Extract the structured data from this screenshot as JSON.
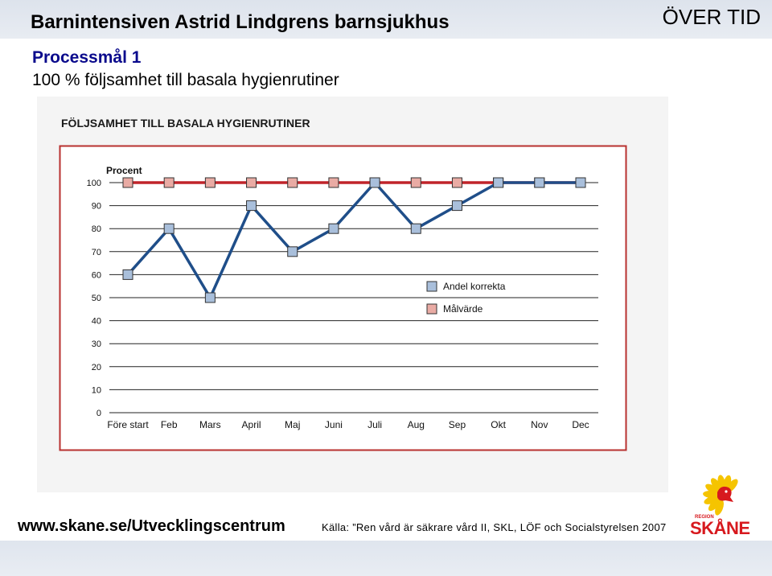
{
  "slide": {
    "title": "Barnintensiven Astrid Lindgrens barnsjukhus",
    "over_tid": "ÖVER TID",
    "subtitle": "Processmål 1",
    "description": "100 % följsamhet till basala hygienrutiner"
  },
  "footer": {
    "url": "www.skane.se/Utvecklingscentrum",
    "source": "Källa: ”Ren vård är säkrare vård II, SKL, LÖF och Socialstyrelsen 2007"
  },
  "logo": {
    "region_text": "REGION",
    "name_text": "SKÅNE",
    "colors": {
      "yellow": "#f5c400",
      "red": "#d7191e"
    }
  },
  "chart_data": {
    "type": "line",
    "title": "FÖLJSAMHET TILL BASALA HYGIENRUTINER",
    "ylabel": "Procent",
    "xlabel": "",
    "categories": [
      "Före start",
      "Feb",
      "Mars",
      "April",
      "Maj",
      "Juni",
      "Juli",
      "Aug",
      "Sep",
      "Okt",
      "Nov",
      "Dec"
    ],
    "yticks": [
      0,
      10,
      20,
      30,
      40,
      50,
      60,
      70,
      80,
      90,
      100
    ],
    "ylim": [
      0,
      100
    ],
    "grid": true,
    "legend_position": "right",
    "series": [
      {
        "name": "Andel korrekta",
        "values": [
          60,
          80,
          50,
          90,
          70,
          80,
          100,
          80,
          90,
          100,
          100,
          100
        ],
        "line_color": "#1f4e89",
        "marker_color": "#a9bfdb"
      },
      {
        "name": "Målvärde",
        "values": [
          100,
          100,
          100,
          100,
          100,
          100,
          100,
          100,
          100,
          100,
          100,
          100
        ],
        "line_color": "#c0242a",
        "marker_color": "#e9aba4"
      }
    ],
    "colors": {
      "frame": "#b8312f",
      "axis_text": "#111111",
      "title_text": "#1a1a1a"
    }
  }
}
